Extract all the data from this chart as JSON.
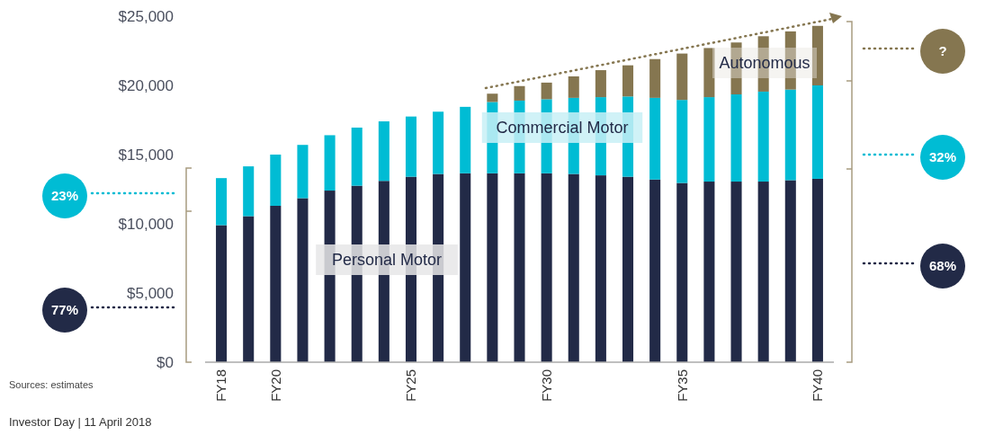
{
  "chart_data": {
    "type": "bar",
    "stacked": true,
    "categories": [
      "FY18",
      null,
      "FY20",
      null,
      null,
      null,
      null,
      "FY25",
      null,
      null,
      null,
      null,
      "FY30",
      null,
      null,
      null,
      null,
      "FY35",
      null,
      null,
      null,
      null,
      "FY40"
    ],
    "series": [
      {
        "name": "Personal Motor",
        "color": "#222a47",
        "values": [
          9900,
          10550,
          11300,
          11850,
          12400,
          12750,
          13100,
          13400,
          13600,
          13650,
          13650,
          13650,
          13650,
          13600,
          13500,
          13400,
          13200,
          12950,
          13050,
          13050,
          13050,
          13150,
          13250
        ]
      },
      {
        "name": "Commercial Motor",
        "color": "#00bcd4",
        "values": [
          3400,
          3600,
          3700,
          3850,
          4000,
          4200,
          4300,
          4350,
          4500,
          4800,
          5150,
          5250,
          5350,
          5500,
          5650,
          5800,
          5900,
          6000,
          6100,
          6300,
          6500,
          6550,
          6750
        ]
      },
      {
        "name": "Autonomous",
        "color": "#857650",
        "values": [
          null,
          null,
          null,
          null,
          null,
          null,
          null,
          null,
          null,
          null,
          600,
          1050,
          1200,
          1550,
          1950,
          2250,
          2800,
          3350,
          3550,
          3750,
          4000,
          4200,
          4300
        ]
      }
    ],
    "ylim": [
      0,
      25000
    ],
    "yticks": [
      {
        "value": 0,
        "label": "$0"
      },
      {
        "value": 5000,
        "label": "$5,000"
      },
      {
        "value": 10000,
        "label": "$10,000"
      },
      {
        "value": 15000,
        "label": "$15,000"
      },
      {
        "value": 20000,
        "label": "$20,000"
      },
      {
        "value": 25000,
        "label": "$25,000"
      }
    ],
    "grid": false,
    "annotations": [
      "23%",
      "77%",
      "?",
      "32%",
      "68%",
      "Sources: estimates",
      "Investor Day | 11 April 2018"
    ]
  }
}
